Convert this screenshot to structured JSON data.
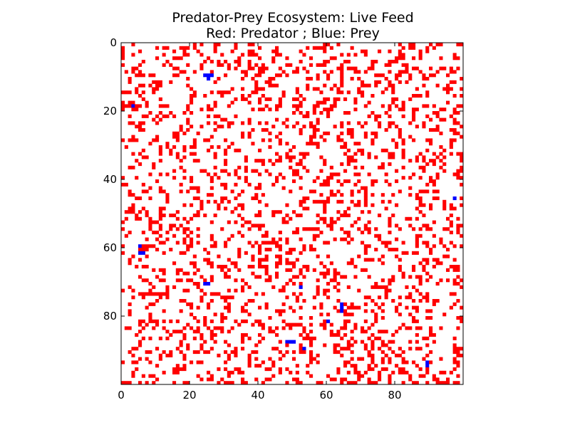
{
  "chart_data": {
    "type": "heatmap",
    "title_line1": "Predator-Prey Ecosystem: Live Feed",
    "title_line2": "Red: Predator ; Blue: Prey",
    "grid_size": [
      100,
      100
    ],
    "xlim": [
      0,
      100
    ],
    "ylim": [
      100,
      0
    ],
    "xticks": [
      0,
      20,
      40,
      60,
      80
    ],
    "yticks": [
      0,
      20,
      40,
      60,
      80
    ],
    "colors": {
      "predator": "#ff0000",
      "prey": "#0000ff",
      "empty": "#ffffff"
    },
    "predator_density": 0.23,
    "prey_cells": [
      [
        24,
        9
      ],
      [
        25,
        9
      ],
      [
        26,
        9
      ],
      [
        25,
        10
      ],
      [
        3,
        18
      ],
      [
        5,
        59
      ],
      [
        5,
        61
      ],
      [
        6,
        61
      ],
      [
        24,
        70
      ],
      [
        25,
        70
      ],
      [
        52,
        71
      ],
      [
        64,
        76
      ],
      [
        64,
        77
      ],
      [
        64,
        78
      ],
      [
        60,
        81
      ],
      [
        48,
        87
      ],
      [
        49,
        87
      ],
      [
        50,
        87
      ],
      [
        53,
        89
      ],
      [
        89,
        93
      ],
      [
        89,
        94
      ],
      [
        97,
        45
      ]
    ]
  }
}
